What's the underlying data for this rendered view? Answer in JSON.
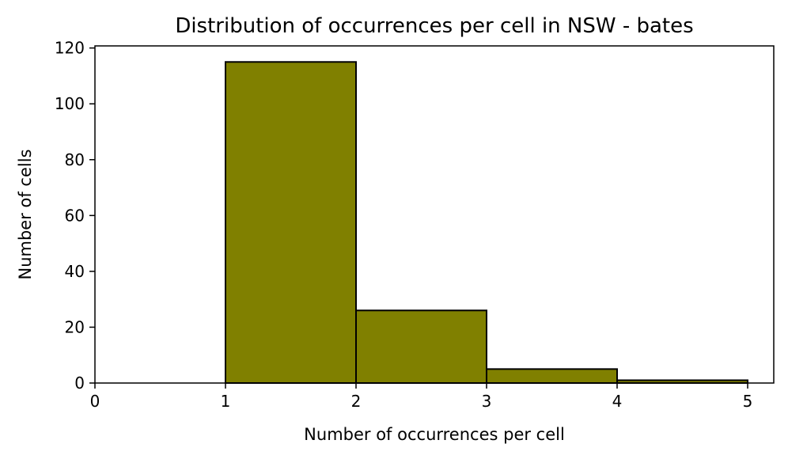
{
  "chart_data": {
    "type": "bar",
    "title": "Distribution of occurrences per cell in NSW - bates",
    "xlabel": "Number of occurrences per cell",
    "ylabel": "Number of cells",
    "xlim": [
      0,
      5.2
    ],
    "ylim": [
      0,
      120.75
    ],
    "x_ticks": [
      "0",
      "1",
      "2",
      "3",
      "4",
      "5"
    ],
    "y_ticks": [
      "0",
      "20",
      "40",
      "60",
      "80",
      "100",
      "120"
    ],
    "bins": [
      {
        "x0": 1,
        "x1": 2,
        "value": 115
      },
      {
        "x0": 2,
        "x1": 3,
        "value": 26
      },
      {
        "x0": 3,
        "x1": 4,
        "value": 5
      },
      {
        "x0": 4,
        "x1": 5,
        "value": 1
      }
    ],
    "bar_color": "#808000",
    "edge_color": "#000000",
    "grid": false,
    "legend": "none"
  }
}
